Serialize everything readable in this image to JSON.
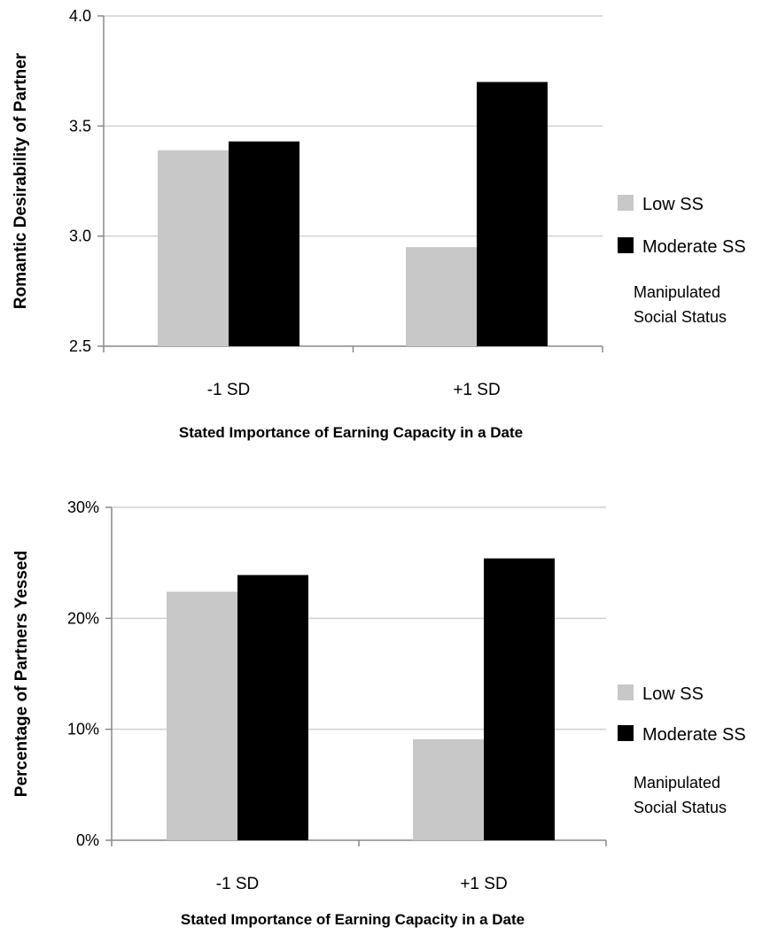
{
  "colors": {
    "low": "#c8c8c8",
    "moderate": "#000000",
    "grid": "#d0d0d0",
    "axis": "#888888"
  },
  "chart_data": [
    {
      "type": "bar",
      "ylabel": "Romantic Desirability of Partner",
      "xlabel": "Stated Importance of Earning Capacity in a Date",
      "categories": [
        "-1 SD",
        "+1 SD"
      ],
      "series": [
        {
          "name": "Low SS",
          "values": [
            3.39,
            2.95
          ]
        },
        {
          "name": "Moderate SS",
          "values": [
            3.43,
            3.7
          ]
        }
      ],
      "ylim": [
        2.5,
        4.0
      ],
      "yticks": [
        "2.5",
        "3.0",
        "3.5",
        "4.0"
      ],
      "ytick_values": [
        2.5,
        3.0,
        3.5,
        4.0
      ],
      "legend_title": [
        "Manipulated",
        "Social Status"
      ],
      "legend_position": "right",
      "grid": true
    },
    {
      "type": "bar",
      "ylabel": "Percentage of Partners Yessed",
      "xlabel": "Stated Importance of Earning Capacity in a Date",
      "categories": [
        "-1 SD",
        "+1 SD"
      ],
      "series": [
        {
          "name": "Low SS",
          "values": [
            22.4,
            9.1
          ]
        },
        {
          "name": "Moderate SS",
          "values": [
            23.9,
            25.4
          ]
        }
      ],
      "ylim": [
        0,
        30
      ],
      "yticks": [
        "0%",
        "10%",
        "20%",
        "30%"
      ],
      "ytick_values": [
        0,
        10,
        20,
        30
      ],
      "legend_title": [
        "Manipulated",
        "Social Status"
      ],
      "legend_position": "right",
      "grid": true
    }
  ]
}
